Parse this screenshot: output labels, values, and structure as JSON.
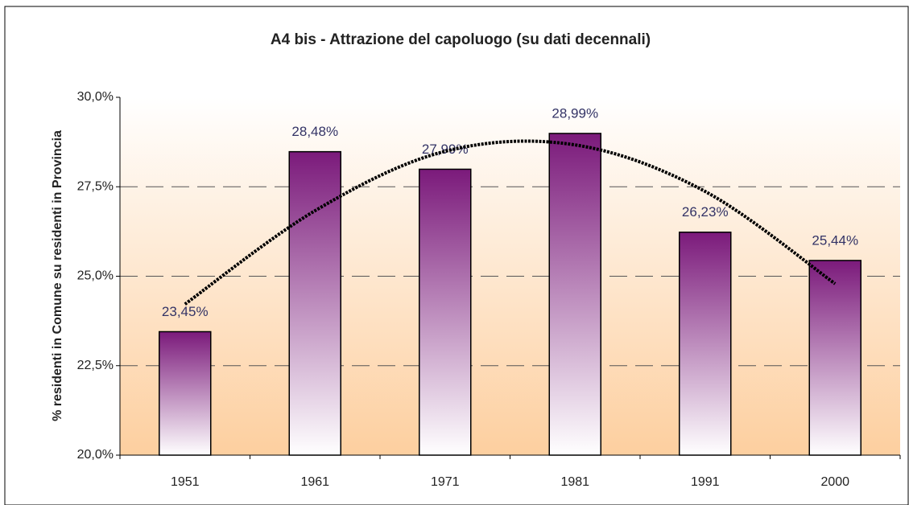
{
  "chart_data": {
    "type": "bar",
    "title": "A4 bis - Attrazione del capoluogo (su dati decennali)",
    "y_label": "% residenti in Comune su residenti in Provincia",
    "categories": [
      "1951",
      "1961",
      "1971",
      "1981",
      "1991",
      "2000"
    ],
    "values": [
      23.45,
      28.48,
      27.99,
      28.99,
      26.23,
      25.44
    ],
    "value_labels": [
      "23,45%",
      "28,48%",
      "27,99%",
      "28,99%",
      "26,23%",
      "25,44%"
    ],
    "color": "#7b1a7b",
    "trend": {
      "values": [
        24.22,
        26.83,
        28.49,
        28.67,
        27.37,
        24.79
      ],
      "color": "#000000"
    },
    "ylim": [
      20,
      30
    ],
    "yticks": [
      {
        "value": 20,
        "label": "20,0%"
      },
      {
        "value": 22.5,
        "label": "22,5%"
      },
      {
        "value": 25,
        "label": "25,0%"
      },
      {
        "value": 27.5,
        "label": "27,5%"
      },
      {
        "value": 30,
        "label": "30,0%"
      }
    ],
    "grid": true
  }
}
